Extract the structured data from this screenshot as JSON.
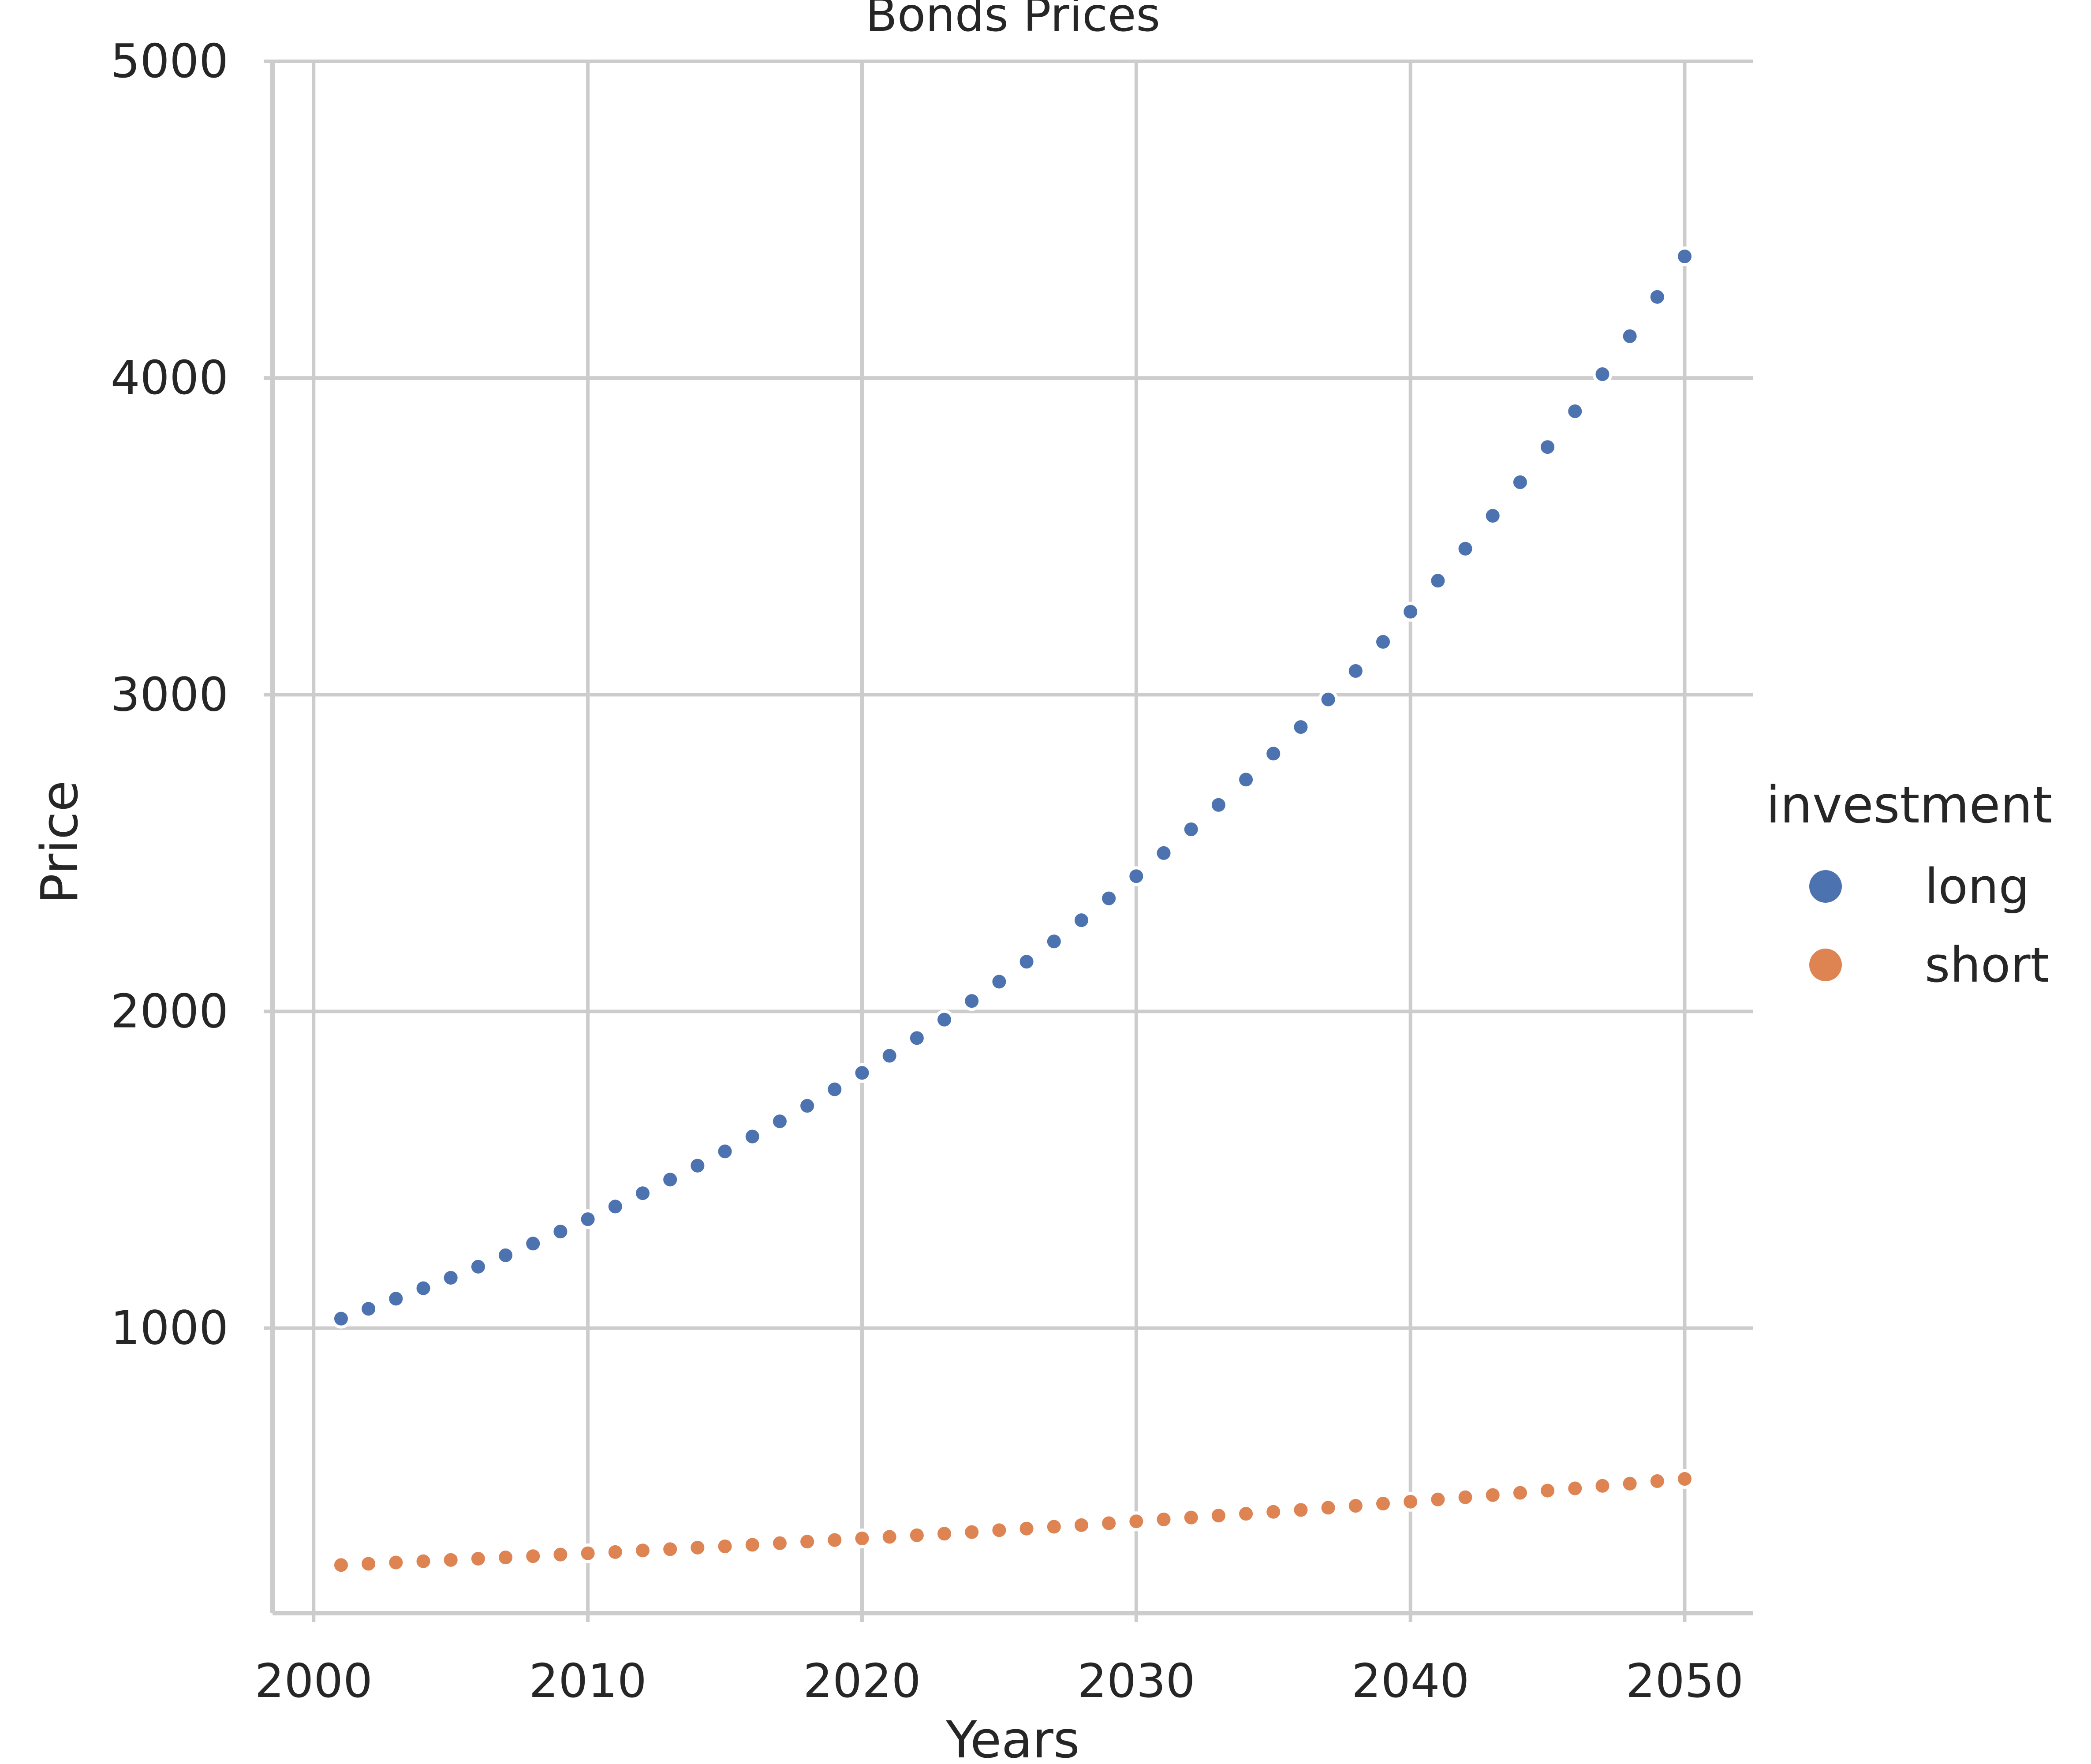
{
  "chart_data": {
    "type": "scatter",
    "title": "Bonds Prices",
    "xlabel": "Years",
    "ylabel": "Price",
    "xlim": [
      1998.5,
      2052.5
    ],
    "ylim": [
      100,
      5000
    ],
    "xticks": [
      2000,
      2010,
      2020,
      2030,
      2040,
      2050
    ],
    "yticks": [
      1000,
      2000,
      3000,
      4000,
      5000
    ],
    "xtick_labels": [
      "2000",
      "2010",
      "2020",
      "2030",
      "2040",
      "2050"
    ],
    "ytick_labels": [
      "1000",
      "2000",
      "3000",
      "4000",
      "5000"
    ],
    "grid": true,
    "legend": {
      "title": "investment",
      "placement": "right",
      "entries": [
        "long",
        "short"
      ]
    },
    "x": [
      2001,
      2002,
      2003,
      2004,
      2005,
      2006,
      2007,
      2008,
      2009,
      2010,
      2011,
      2012,
      2013,
      2014,
      2015,
      2016,
      2017,
      2018,
      2019,
      2020,
      2021,
      2022,
      2023,
      2024,
      2025,
      2026,
      2027,
      2028,
      2029,
      2030,
      2031,
      2032,
      2033,
      2034,
      2035,
      2036,
      2037,
      2038,
      2039,
      2040,
      2041,
      2042,
      2043,
      2044,
      2045,
      2046,
      2047,
      2048,
      2049,
      2050
    ],
    "series": [
      {
        "name": "long",
        "color": "#4c72b0",
        "values": [
          1030,
          1061,
          1093,
          1126,
          1159,
          1194,
          1230,
          1267,
          1305,
          1344,
          1384,
          1426,
          1469,
          1513,
          1558,
          1605,
          1653,
          1702,
          1754,
          1806,
          1860,
          1916,
          1974,
          2033,
          2094,
          2157,
          2221,
          2288,
          2357,
          2427,
          2500,
          2575,
          2652,
          2732,
          2814,
          2898,
          2985,
          3075,
          3167,
          3262,
          3360,
          3461,
          3565,
          3671,
          3782,
          3895,
          4012,
          4132,
          4256,
          4384
        ]
      },
      {
        "name": "short",
        "color": "#dd8452",
        "values": [
          252,
          256,
          260,
          264,
          268,
          272,
          276,
          280,
          285,
          289,
          293,
          298,
          302,
          307,
          311,
          316,
          321,
          326,
          331,
          336,
          341,
          346,
          351,
          356,
          362,
          367,
          373,
          378,
          384,
          390,
          396,
          402,
          408,
          414,
          420,
          426,
          433,
          439,
          446,
          452,
          459,
          466,
          473,
          480,
          487,
          494,
          502,
          509,
          517,
          524
        ]
      }
    ]
  }
}
